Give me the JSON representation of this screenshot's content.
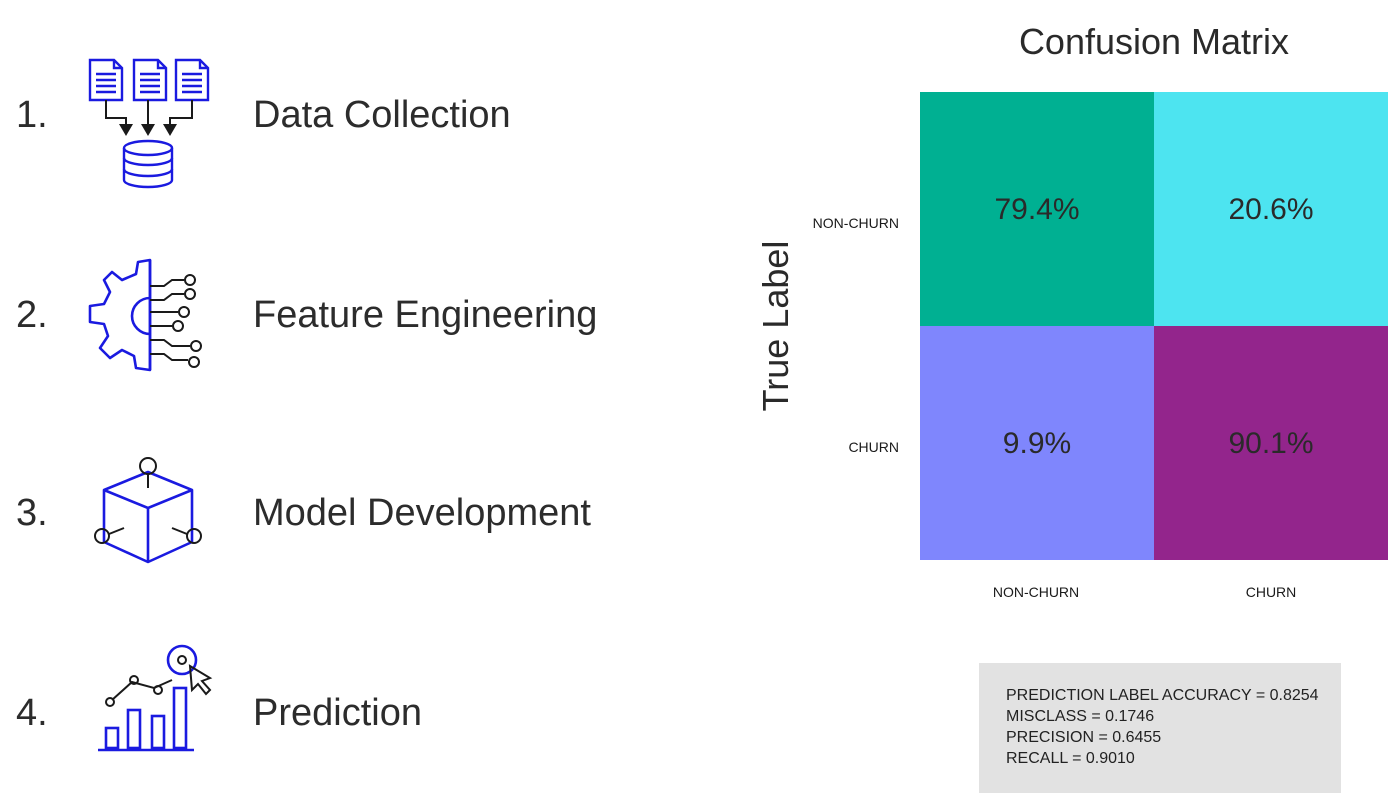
{
  "steps": [
    {
      "number": "1.",
      "label": "Data Collection",
      "icon": "documents-to-database-icon"
    },
    {
      "number": "2.",
      "label": "Feature Engineering",
      "icon": "gear-circuit-icon"
    },
    {
      "number": "3.",
      "label": "Model Development",
      "icon": "cube-nodes-icon"
    },
    {
      "number": "4.",
      "label": "Prediction",
      "icon": "chart-target-cursor-icon"
    }
  ],
  "colors": {
    "icon": "#1a1ae0",
    "text": "#2c2c2c",
    "tn": "#00b092",
    "fp": "#4de4f0",
    "fn": "#7f86fd",
    "tp": "#93258c"
  },
  "chart_data": {
    "type": "heatmap",
    "title": "Confusion Matrix",
    "ylabel": "True Label",
    "xlabel": "",
    "row_labels": [
      "NON-CHURN",
      "CHURN"
    ],
    "col_labels": [
      "NON-CHURN",
      "CHURN"
    ],
    "values": [
      [
        79.4,
        20.6
      ],
      [
        9.9,
        90.1
      ]
    ],
    "value_labels": [
      [
        "79.4%",
        "20.6%"
      ],
      [
        "9.9%",
        "90.1%"
      ]
    ]
  },
  "metrics": {
    "accuracy": "PREDICTION LABEL ACCURACY = 0.8254",
    "misclass": "MISCLASS = 0.1746",
    "precision": "PRECISION = 0.6455",
    "recall": "RECALL = 0.9010"
  }
}
